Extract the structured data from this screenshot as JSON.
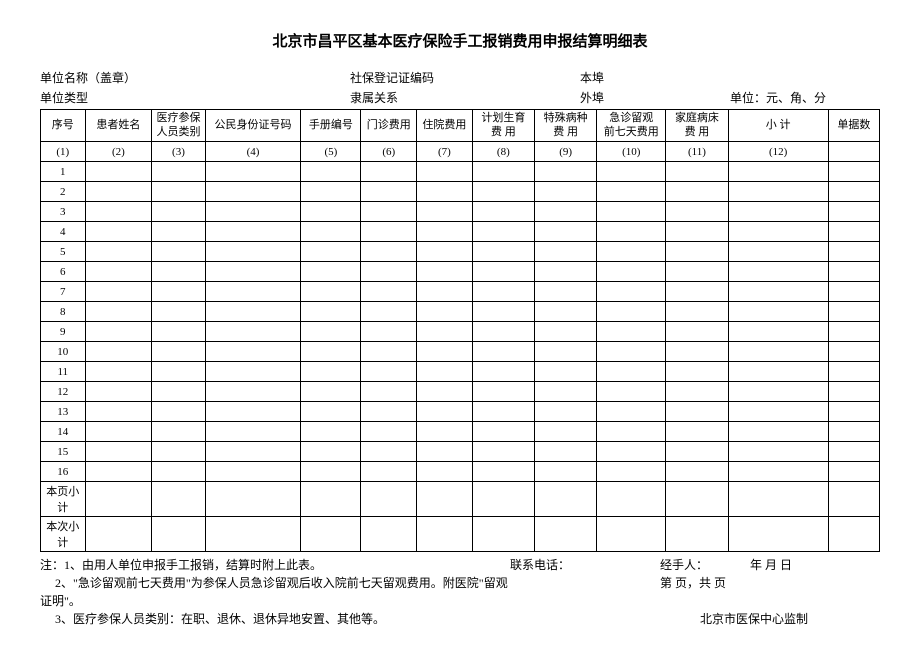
{
  "title": "北京市昌平区基本医疗保险手工报销费用申报结算明细表",
  "meta": {
    "row1": {
      "c1": "单位名称（盖章）",
      "c2": "社保登记证编码",
      "c3": "本埠",
      "c4": ""
    },
    "row2": {
      "c1": "单位类型",
      "c2": "隶属关系",
      "c3": "外埠",
      "c4": "单位：元、角、分"
    }
  },
  "columns": [
    "序号",
    "患者姓名",
    "医疗参保\n人员类别",
    "公民身份证号码",
    "手册编号",
    "门诊费用",
    "住院费用",
    "计划生育\n费   用",
    "特殊病种\n费   用",
    "急诊留观\n前七天费用",
    "家庭病床\n费   用",
    "小   计",
    "单据数"
  ],
  "index_row": [
    "(1)",
    "(2)",
    "(3)",
    "(4)",
    "(5)",
    "(6)",
    "(7)",
    "(8)",
    "(9)",
    "(10)",
    "(11)",
    "(12)",
    ""
  ],
  "row_nums": [
    "1",
    "2",
    "3",
    "4",
    "5",
    "6",
    "7",
    "8",
    "9",
    "10",
    "11",
    "12",
    "13",
    "14",
    "15",
    "16"
  ],
  "subtotals": {
    "page": "本页小计",
    "batch": "本次小计"
  },
  "notes": {
    "prefix": "注：",
    "line1_left": "1、由用人单位申报手工报销，结算时附上此表。",
    "line1_mid": "联系电话：",
    "line1_right_a": "经手人：",
    "line1_right_b": "年   月   日",
    "line2_left": "2、\"急诊留观前七天费用\"为参保人员急诊留观后收入院前七天留观费用。附医院\"留观证明\"。",
    "line2_right": "第        页，共        页",
    "line3_left": "3、医疗参保人员类别：在职、退休、退休异地安置、其他等。",
    "line3_right": "北京市医保中心监制"
  }
}
